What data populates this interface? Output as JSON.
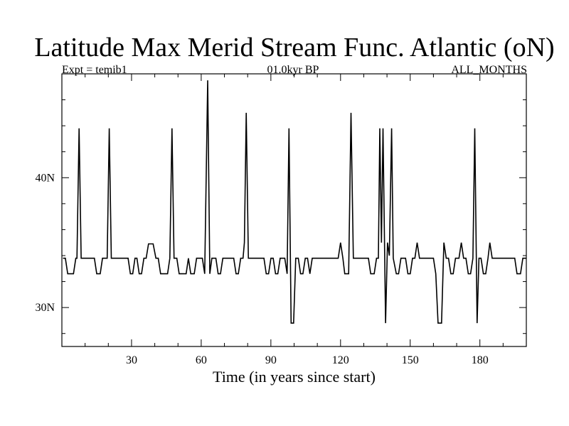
{
  "chart_data": {
    "type": "line",
    "title": "Latitude Max Merid Stream Func. Atlantic (oN)",
    "subtitle_left": "Expt = temib1",
    "subtitle_center": "01.0kyr BP",
    "subtitle_right": "ALL_MONTHS",
    "xlabel": "Time (in years since start)",
    "ylabel": "",
    "xlim": [
      0,
      200
    ],
    "ylim": [
      27,
      48
    ],
    "x_ticks": [
      30,
      60,
      90,
      120,
      150,
      180
    ],
    "x_tick_labels": [
      "30",
      "60",
      "90",
      "120",
      "150",
      "180"
    ],
    "y_ticks": [
      30,
      40
    ],
    "y_tick_labels": [
      "30N",
      "40N"
    ],
    "grid": false,
    "series": [
      {
        "color": "#000000",
        "points": [
          [
            0.5,
            33.8
          ],
          [
            1.5,
            33.8
          ],
          [
            2.5,
            32.6
          ],
          [
            5,
            32.6
          ],
          [
            6,
            33.8
          ],
          [
            6.5,
            33.8
          ],
          [
            7.4,
            43.8
          ],
          [
            8.3,
            33.8
          ],
          [
            14,
            33.8
          ],
          [
            15,
            32.6
          ],
          [
            16.5,
            32.6
          ],
          [
            17.5,
            33.8
          ],
          [
            19.5,
            33.8
          ],
          [
            20.4,
            43.8
          ],
          [
            21.3,
            33.8
          ],
          [
            28.5,
            33.8
          ],
          [
            29.5,
            32.6
          ],
          [
            30.5,
            32.6
          ],
          [
            31.5,
            33.8
          ],
          [
            32.3,
            33.8
          ],
          [
            33.3,
            32.6
          ],
          [
            34.3,
            32.6
          ],
          [
            35.3,
            33.8
          ],
          [
            36.3,
            33.8
          ],
          [
            37.3,
            34.9
          ],
          [
            39.3,
            34.9
          ],
          [
            40.5,
            33.8
          ],
          [
            41.5,
            33.8
          ],
          [
            42.5,
            32.6
          ],
          [
            45.5,
            32.6
          ],
          [
            46.5,
            33.8
          ],
          [
            47.4,
            43.8
          ],
          [
            48.3,
            33.8
          ],
          [
            49.5,
            33.8
          ],
          [
            50.5,
            32.6
          ],
          [
            53.5,
            32.6
          ],
          [
            54.5,
            33.8
          ],
          [
            55.5,
            32.6
          ],
          [
            57,
            32.6
          ],
          [
            58,
            33.8
          ],
          [
            60.5,
            33.8
          ],
          [
            61.5,
            32.6
          ],
          [
            62.8,
            47.5
          ],
          [
            63.7,
            32.6
          ],
          [
            64.6,
            33.8
          ],
          [
            66.3,
            33.8
          ],
          [
            67.3,
            32.6
          ],
          [
            68.3,
            32.6
          ],
          [
            69.3,
            33.8
          ],
          [
            74,
            33.8
          ],
          [
            75,
            32.6
          ],
          [
            76,
            32.6
          ],
          [
            77,
            33.8
          ],
          [
            78,
            33.8
          ],
          [
            78.6,
            35
          ],
          [
            79.4,
            45
          ],
          [
            80.3,
            33.8
          ],
          [
            87,
            33.8
          ],
          [
            88,
            32.6
          ],
          [
            89,
            32.6
          ],
          [
            90,
            33.8
          ],
          [
            91,
            33.8
          ],
          [
            92,
            32.6
          ],
          [
            93,
            32.6
          ],
          [
            94,
            33.8
          ],
          [
            96,
            33.8
          ],
          [
            97,
            32.6
          ],
          [
            97.8,
            43.8
          ],
          [
            98.7,
            28.8
          ],
          [
            99.8,
            28.8
          ],
          [
            100.7,
            33.8
          ],
          [
            101.8,
            33.8
          ],
          [
            102.8,
            32.6
          ],
          [
            103.8,
            32.6
          ],
          [
            104.8,
            33.8
          ],
          [
            105.8,
            33.8
          ],
          [
            106.8,
            32.6
          ],
          [
            107.8,
            33.8
          ],
          [
            119,
            33.8
          ],
          [
            120,
            35
          ],
          [
            121,
            33.8
          ],
          [
            121.8,
            32.6
          ],
          [
            123.5,
            32.6
          ],
          [
            124.5,
            45
          ],
          [
            125.5,
            33.8
          ],
          [
            132,
            33.8
          ],
          [
            133,
            32.6
          ],
          [
            134.5,
            32.6
          ],
          [
            135.5,
            33.8
          ],
          [
            136.3,
            33.8
          ],
          [
            136.9,
            43.8
          ],
          [
            137.6,
            35
          ],
          [
            138.3,
            43.8
          ],
          [
            139.4,
            28.8
          ],
          [
            140.2,
            35
          ],
          [
            141,
            34
          ],
          [
            142,
            43.8
          ],
          [
            142.7,
            33.8
          ],
          [
            144,
            32.6
          ],
          [
            145,
            32.6
          ],
          [
            146,
            33.8
          ],
          [
            148,
            33.8
          ],
          [
            149,
            32.6
          ],
          [
            150,
            32.6
          ],
          [
            151,
            33.8
          ],
          [
            152,
            33.8
          ],
          [
            153,
            35
          ],
          [
            154,
            33.8
          ],
          [
            160,
            33.8
          ],
          [
            161,
            32.6
          ],
          [
            162,
            28.8
          ],
          [
            163.5,
            28.8
          ],
          [
            164.5,
            35
          ],
          [
            165.5,
            33.8
          ],
          [
            166.5,
            33.8
          ],
          [
            167.5,
            32.6
          ],
          [
            168.5,
            32.6
          ],
          [
            169.5,
            33.8
          ],
          [
            171,
            33.8
          ],
          [
            172,
            35
          ],
          [
            173,
            33.8
          ],
          [
            174,
            33.8
          ],
          [
            175,
            32.6
          ],
          [
            176,
            32.6
          ],
          [
            177,
            33.8
          ],
          [
            177.8,
            43.8
          ],
          [
            178.8,
            28.8
          ],
          [
            179.6,
            33.8
          ],
          [
            180.5,
            33.8
          ],
          [
            181.5,
            32.6
          ],
          [
            182.5,
            32.6
          ],
          [
            183.5,
            33.8
          ],
          [
            184.3,
            35
          ],
          [
            185.3,
            33.8
          ],
          [
            195,
            33.8
          ],
          [
            196,
            32.6
          ],
          [
            197.5,
            32.6
          ],
          [
            198.5,
            33.8
          ],
          [
            200,
            33.8
          ]
        ]
      }
    ]
  }
}
